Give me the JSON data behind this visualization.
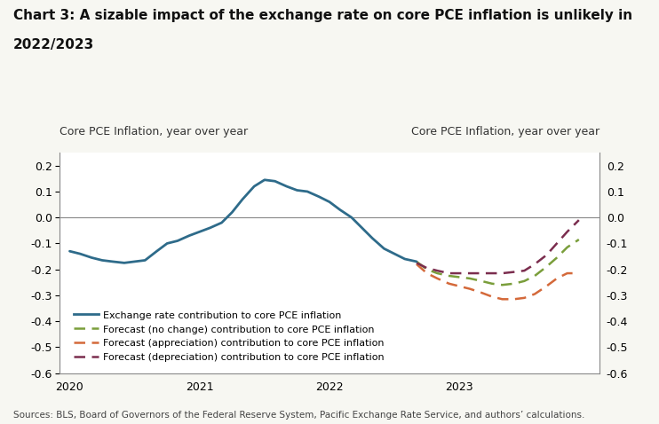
{
  "title_line1": "Chart 3: A sizable impact of the exchange rate on core PCE inflation is unlikely in",
  "title_line2": "2022/2023",
  "ylabel_left": "Core PCE Inflation, year over year",
  "ylabel_right": "Core PCE Inflation, year over year",
  "source": "Sources: BLS, Board of Governors of the Federal Reserve System, Pacific Exchange Rate Service, and authors’ calculations.",
  "ylim": [
    -0.6,
    0.25
  ],
  "yticks": [
    -0.6,
    -0.5,
    -0.4,
    -0.3,
    -0.2,
    -0.1,
    0.0,
    0.1,
    0.2
  ],
  "bg_color": "#f7f7f2",
  "plot_bg_color": "#ffffff",
  "solid_color": "#2e6b8a",
  "no_change_color": "#7a9e3b",
  "appreciation_color": "#d4693a",
  "depreciation_color": "#7b2d4e",
  "legend": [
    "Exchange rate contribution to core PCE inflation",
    "Forecast (no change) contribution to core PCE inflation",
    "Forecast (appreciation) contribution to core PCE inflation",
    "Forecast (depreciation) contribution to core PCE inflation"
  ],
  "solid_x": [
    2020.0,
    2020.08,
    2020.17,
    2020.25,
    2020.33,
    2020.42,
    2020.5,
    2020.58,
    2020.67,
    2020.75,
    2020.83,
    2020.92,
    2021.0,
    2021.08,
    2021.17,
    2021.25,
    2021.33,
    2021.42,
    2021.5,
    2021.58,
    2021.67,
    2021.75,
    2021.83,
    2021.92,
    2022.0,
    2022.08,
    2022.17,
    2022.25,
    2022.33,
    2022.42,
    2022.5,
    2022.58,
    2022.67
  ],
  "solid_y": [
    -0.13,
    -0.14,
    -0.155,
    -0.165,
    -0.17,
    -0.175,
    -0.17,
    -0.165,
    -0.13,
    -0.1,
    -0.09,
    -0.07,
    -0.055,
    -0.04,
    -0.02,
    0.02,
    0.07,
    0.12,
    0.145,
    0.14,
    0.12,
    0.105,
    0.1,
    0.08,
    0.06,
    0.03,
    0.0,
    -0.04,
    -0.08,
    -0.12,
    -0.14,
    -0.16,
    -0.17
  ],
  "no_change_x": [
    2022.67,
    2022.75,
    2022.83,
    2022.92,
    2023.0,
    2023.08,
    2023.17,
    2023.25,
    2023.33,
    2023.42,
    2023.5,
    2023.58,
    2023.67,
    2023.75,
    2023.83,
    2023.92
  ],
  "no_change_y": [
    -0.17,
    -0.2,
    -0.215,
    -0.225,
    -0.23,
    -0.235,
    -0.245,
    -0.255,
    -0.26,
    -0.255,
    -0.245,
    -0.225,
    -0.19,
    -0.155,
    -0.115,
    -0.085
  ],
  "appreciation_x": [
    2022.67,
    2022.75,
    2022.83,
    2022.92,
    2023.0,
    2023.08,
    2023.17,
    2023.25,
    2023.33,
    2023.42,
    2023.5,
    2023.58,
    2023.67,
    2023.75,
    2023.83,
    2023.92
  ],
  "appreciation_y": [
    -0.18,
    -0.215,
    -0.235,
    -0.255,
    -0.265,
    -0.275,
    -0.29,
    -0.305,
    -0.315,
    -0.315,
    -0.31,
    -0.295,
    -0.265,
    -0.235,
    -0.215,
    -0.215
  ],
  "depreciation_x": [
    2022.67,
    2022.75,
    2022.83,
    2022.92,
    2023.0,
    2023.08,
    2023.17,
    2023.25,
    2023.33,
    2023.42,
    2023.5,
    2023.58,
    2023.67,
    2023.75,
    2023.83,
    2023.92
  ],
  "depreciation_y": [
    -0.175,
    -0.195,
    -0.205,
    -0.215,
    -0.215,
    -0.215,
    -0.215,
    -0.215,
    -0.215,
    -0.21,
    -0.205,
    -0.18,
    -0.145,
    -0.1,
    -0.055,
    -0.01
  ],
  "title_fontsize": 11,
  "axis_label_fontsize": 9,
  "tick_fontsize": 9,
  "legend_fontsize": 8,
  "source_fontsize": 7.5
}
